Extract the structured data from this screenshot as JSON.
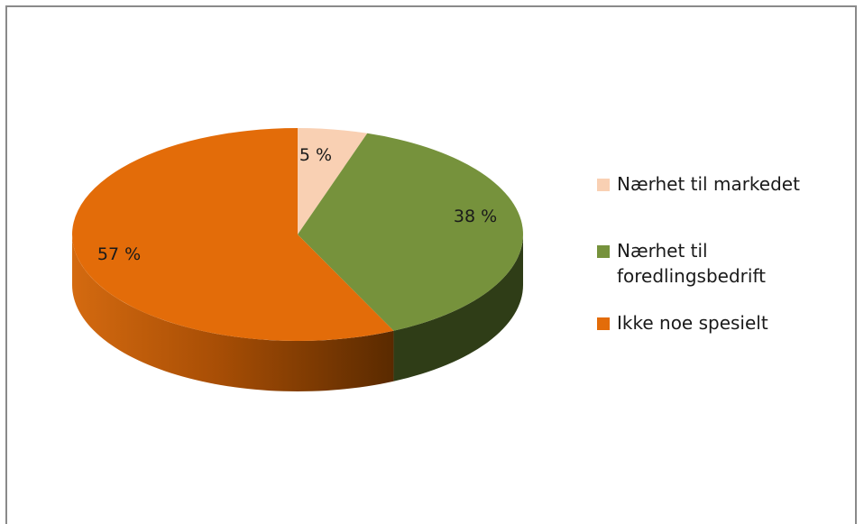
{
  "chart_data": {
    "type": "pie",
    "style": "3d",
    "categories": [
      "Nærhet til markedet",
      "Nærhet til foredlingsbedrift",
      "Ikke noe spesielt"
    ],
    "values": [
      5,
      38,
      57
    ],
    "data_labels": [
      "5 %",
      "38 %",
      "57 %"
    ],
    "colors": [
      "#f9d0b3",
      "#76923c",
      "#e36c09"
    ],
    "side_colors": [
      "#c8a58a",
      "#2f3d17",
      "#a64f06"
    ],
    "legend_position": "right"
  }
}
